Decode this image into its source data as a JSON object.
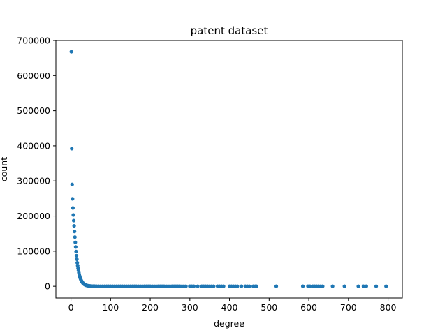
{
  "chart_data": {
    "type": "scatter",
    "title": "patent dataset",
    "xlabel": "degree",
    "ylabel": "count",
    "xlim": [
      -38,
      836
    ],
    "ylim": [
      -33500,
      700000
    ],
    "xticks": [
      0,
      100,
      200,
      300,
      400,
      500,
      600,
      700,
      800
    ],
    "yticks": [
      0,
      100000,
      200000,
      300000,
      400000,
      500000,
      600000,
      700000
    ],
    "grid": false,
    "legend": "none",
    "marker_color": "#1f77b4",
    "series": [
      {
        "points": [
          [
            1,
            668000
          ],
          [
            2,
            392000
          ],
          [
            3,
            290000
          ],
          [
            4,
            249000
          ],
          [
            5,
            223000
          ],
          [
            6,
            203000
          ],
          [
            7,
            187000
          ],
          [
            8,
            172000
          ],
          [
            9,
            156000
          ],
          [
            10,
            140000
          ],
          [
            11,
            125000
          ],
          [
            12,
            112000
          ],
          [
            13,
            99000
          ],
          [
            14,
            87000
          ],
          [
            15,
            77000
          ],
          [
            16,
            67000
          ],
          [
            17,
            59000
          ],
          [
            18,
            51000
          ],
          [
            19,
            45000
          ],
          [
            20,
            39000
          ],
          [
            21,
            34000
          ],
          [
            22,
            29000
          ],
          [
            23,
            25000
          ],
          [
            24,
            22000
          ],
          [
            25,
            19000
          ],
          [
            26,
            16500
          ],
          [
            27,
            14500
          ],
          [
            28,
            12500
          ],
          [
            29,
            11000
          ],
          [
            30,
            9500
          ],
          [
            31,
            8200
          ],
          [
            32,
            7100
          ],
          [
            33,
            6200
          ],
          [
            34,
            5400
          ],
          [
            35,
            4700
          ],
          [
            36,
            4100
          ],
          [
            37,
            3600
          ],
          [
            38,
            3100
          ],
          [
            39,
            2700
          ],
          [
            40,
            2350
          ],
          [
            42,
            1800
          ],
          [
            44,
            1400
          ],
          [
            46,
            1100
          ],
          [
            48,
            850
          ],
          [
            50,
            650
          ],
          [
            53,
            450
          ],
          [
            56,
            320
          ],
          [
            60,
            220
          ],
          [
            65,
            150
          ],
          [
            70,
            100
          ],
          [
            75,
            70
          ],
          [
            80,
            50
          ],
          [
            85,
            40
          ],
          [
            90,
            30
          ],
          [
            95,
            25
          ],
          [
            100,
            20
          ],
          [
            105,
            17
          ],
          [
            110,
            15
          ],
          [
            115,
            13
          ],
          [
            120,
            11
          ],
          [
            125,
            10
          ],
          [
            130,
            9
          ],
          [
            135,
            8
          ],
          [
            140,
            7
          ],
          [
            145,
            6
          ],
          [
            150,
            6
          ],
          [
            155,
            5
          ],
          [
            160,
            5
          ],
          [
            165,
            4
          ],
          [
            170,
            4
          ],
          [
            175,
            4
          ],
          [
            180,
            3
          ],
          [
            185,
            3
          ],
          [
            190,
            3
          ],
          [
            195,
            3
          ],
          [
            200,
            2
          ],
          [
            205,
            2
          ],
          [
            210,
            2
          ],
          [
            215,
            2
          ],
          [
            220,
            2
          ],
          [
            225,
            2
          ],
          [
            230,
            2
          ],
          [
            235,
            2
          ],
          [
            240,
            1
          ],
          [
            245,
            1
          ],
          [
            250,
            1
          ],
          [
            255,
            1
          ],
          [
            260,
            1
          ],
          [
            265,
            1
          ],
          [
            270,
            1
          ],
          [
            275,
            1
          ],
          [
            280,
            1
          ],
          [
            285,
            1
          ],
          [
            290,
            1
          ],
          [
            300,
            1
          ],
          [
            305,
            1
          ],
          [
            310,
            1
          ],
          [
            320,
            1
          ],
          [
            330,
            1
          ],
          [
            335,
            1
          ],
          [
            340,
            1
          ],
          [
            345,
            1
          ],
          [
            350,
            1
          ],
          [
            355,
            1
          ],
          [
            360,
            1
          ],
          [
            370,
            1
          ],
          [
            375,
            1
          ],
          [
            380,
            1
          ],
          [
            385,
            1
          ],
          [
            400,
            1
          ],
          [
            405,
            1
          ],
          [
            410,
            1
          ],
          [
            415,
            1
          ],
          [
            420,
            1
          ],
          [
            430,
            1
          ],
          [
            440,
            1
          ],
          [
            445,
            1
          ],
          [
            450,
            1
          ],
          [
            460,
            1
          ],
          [
            465,
            1
          ],
          [
            468,
            1
          ],
          [
            518,
            1
          ],
          [
            585,
            1
          ],
          [
            598,
            1
          ],
          [
            603,
            1
          ],
          [
            610,
            1
          ],
          [
            615,
            1
          ],
          [
            620,
            1
          ],
          [
            625,
            1
          ],
          [
            630,
            1
          ],
          [
            635,
            1
          ],
          [
            660,
            1
          ],
          [
            690,
            1
          ],
          [
            725,
            1
          ],
          [
            738,
            1
          ],
          [
            745,
            1
          ],
          [
            770,
            1
          ],
          [
            795,
            1
          ]
        ]
      }
    ]
  }
}
